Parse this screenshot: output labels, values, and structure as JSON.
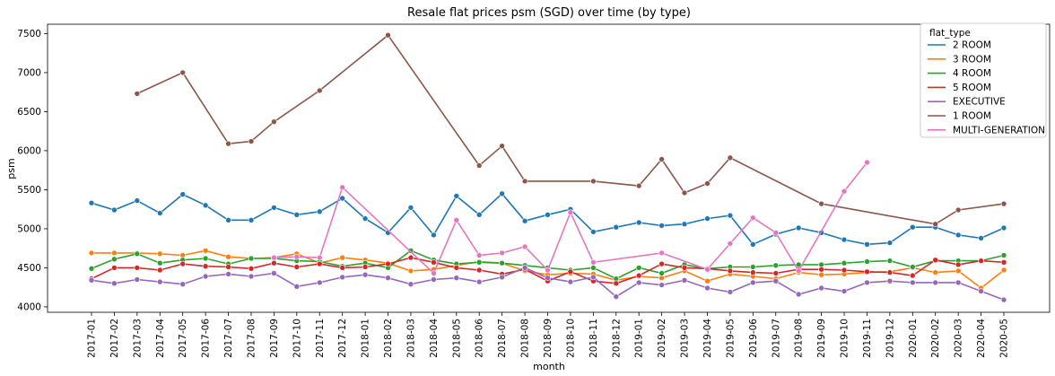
{
  "chart_data": {
    "type": "line",
    "title": "Resale flat prices psm (SGD) over time (by type)",
    "xlabel": "month",
    "ylabel": "psm",
    "categories": [
      "2017-01",
      "2017-02",
      "2017-03",
      "2017-04",
      "2017-05",
      "2017-06",
      "2017-07",
      "2017-08",
      "2017-09",
      "2017-10",
      "2017-11",
      "2017-12",
      "2018-01",
      "2018-02",
      "2018-03",
      "2018-04",
      "2018-05",
      "2018-06",
      "2018-07",
      "2018-08",
      "2018-09",
      "2018-10",
      "2018-11",
      "2018-12",
      "2019-01",
      "2019-02",
      "2019-03",
      "2019-04",
      "2019-05",
      "2019-06",
      "2019-07",
      "2019-08",
      "2019-09",
      "2019-10",
      "2019-11",
      "2019-12",
      "2020-01",
      "2020-02",
      "2020-03",
      "2020-04",
      "2020-05"
    ],
    "ylim": [
      3930,
      7620
    ],
    "yticks": [
      4000,
      4500,
      5000,
      5500,
      6000,
      6500,
      7000,
      7500
    ],
    "legend": {
      "title": "flat_type",
      "placement": "top-right"
    },
    "grid": false,
    "series": [
      {
        "name": "2 ROOM",
        "color": "#1f77b4",
        "values": [
          5330,
          5240,
          5360,
          5200,
          5440,
          5300,
          5110,
          5110,
          5270,
          5180,
          5220,
          5390,
          5130,
          4950,
          5270,
          4920,
          5420,
          5180,
          5450,
          5100,
          5180,
          5250,
          4960,
          5020,
          5080,
          5040,
          5060,
          5130,
          5170,
          4800,
          4930,
          5010,
          4950,
          4860,
          4800,
          4820,
          5020,
          5020,
          4920,
          4880,
          5010
        ]
      },
      {
        "name": "3 ROOM",
        "color": "#ff7f0e",
        "values": [
          4690,
          4690,
          4690,
          4680,
          4660,
          4720,
          4640,
          4620,
          4630,
          4680,
          4560,
          4630,
          4600,
          4560,
          4460,
          4480,
          4530,
          4580,
          4560,
          4460,
          4410,
          4430,
          4420,
          4340,
          4390,
          4370,
          4460,
          4330,
          4420,
          4390,
          4360,
          4440,
          4410,
          4420,
          4440,
          4450,
          4500,
          4440,
          4460,
          4240,
          4470
        ]
      },
      {
        "name": "4 ROOM",
        "color": "#2ca02c",
        "values": [
          4490,
          4610,
          4680,
          4560,
          4600,
          4620,
          4550,
          4620,
          4620,
          4590,
          4580,
          4520,
          4560,
          4500,
          4720,
          4600,
          4550,
          4570,
          4560,
          4530,
          4500,
          4470,
          4500,
          4360,
          4500,
          4430,
          4540,
          4490,
          4510,
          4510,
          4530,
          4540,
          4540,
          4560,
          4580,
          4590,
          4510,
          4590,
          4590,
          4590,
          4660
        ]
      },
      {
        "name": "5 ROOM",
        "color": "#d62728",
        "values": [
          4360,
          4500,
          4500,
          4470,
          4550,
          4520,
          4510,
          4490,
          4560,
          4510,
          4550,
          4500,
          4510,
          4550,
          4630,
          4570,
          4500,
          4470,
          4420,
          4480,
          4330,
          4450,
          4330,
          4300,
          4400,
          4550,
          4500,
          4490,
          4460,
          4440,
          4430,
          4480,
          4480,
          4470,
          4450,
          4440,
          4400,
          4600,
          4540,
          4590,
          4570
        ]
      },
      {
        "name": "EXECUTIVE",
        "color": "#9467bd",
        "values": [
          4340,
          4300,
          4350,
          4320,
          4290,
          4390,
          4420,
          4390,
          4430,
          4260,
          4310,
          4380,
          4410,
          4370,
          4290,
          4350,
          4370,
          4320,
          4380,
          4500,
          4370,
          4320,
          4380,
          4130,
          4310,
          4280,
          4340,
          4240,
          4190,
          4310,
          4330,
          4160,
          4240,
          4200,
          4310,
          4330,
          4310,
          4310,
          4310,
          4200,
          4090
        ]
      },
      {
        "name": "1 ROOM",
        "color": "#8c564b",
        "values": [
          null,
          null,
          6730,
          null,
          7000,
          null,
          6090,
          6120,
          6370,
          null,
          6770,
          null,
          null,
          7480,
          null,
          null,
          null,
          5810,
          6060,
          5610,
          null,
          null,
          5610,
          null,
          5550,
          5890,
          5460,
          5580,
          5910,
          null,
          null,
          null,
          5320,
          null,
          null,
          null,
          null,
          5060,
          5240,
          null,
          5320
        ]
      },
      {
        "name": "MULTI-GENERATION",
        "color": "#e377c2",
        "values": [
          null,
          null,
          null,
          null,
          null,
          null,
          null,
          null,
          4630,
          4640,
          4630,
          5530,
          null,
          null,
          null,
          4430,
          5110,
          4660,
          4690,
          4770,
          4470,
          5210,
          4570,
          null,
          null,
          4690,
          null,
          4480,
          4810,
          5140,
          4950,
          4460,
          null,
          5480,
          5850,
          null,
          null,
          null,
          null,
          null,
          null
        ]
      }
    ]
  }
}
